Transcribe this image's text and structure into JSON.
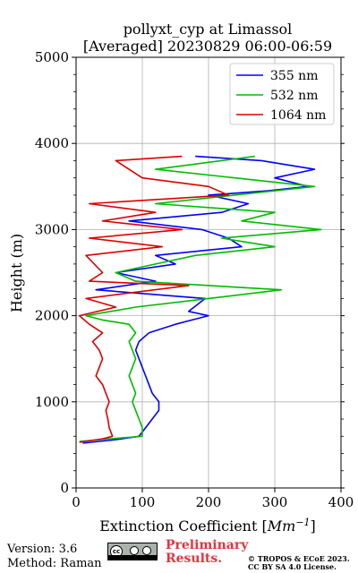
{
  "chart_data": {
    "type": "line",
    "title": "pollyxt_cyp at Limassol",
    "subtitle": "[Averaged] 20230829 06:00-06:59",
    "xlabel": "Extinction Coefficient [Mm⁻¹]",
    "xlabel_base": "Extinction Coefficient [",
    "xlabel_unit": "Mm",
    "xlabel_exp": "−1",
    "xlabel_close": "]",
    "ylabel": "Height (m)",
    "xlim": [
      0,
      400
    ],
    "ylim": [
      0,
      5000
    ],
    "xticks": [
      "0",
      "100",
      "200",
      "300",
      "400"
    ],
    "yticks": [
      "0",
      "1000",
      "2000",
      "3000",
      "4000",
      "5000"
    ],
    "grid": true,
    "legend_position": "top-right",
    "series": [
      {
        "name": "355 nm",
        "color": "#0000ff",
        "points": [
          [
            10,
            520
          ],
          [
            60,
            560
          ],
          [
            95,
            600
          ],
          [
            105,
            700
          ],
          [
            115,
            800
          ],
          [
            125,
            900
          ],
          [
            125,
            1000
          ],
          [
            115,
            1100
          ],
          [
            110,
            1200
          ],
          [
            105,
            1300
          ],
          [
            100,
            1400
          ],
          [
            95,
            1500
          ],
          [
            90,
            1600
          ],
          [
            95,
            1700
          ],
          [
            110,
            1800
          ],
          [
            150,
            1900
          ],
          [
            175,
            1950
          ],
          [
            200,
            2000
          ],
          [
            170,
            2050
          ],
          [
            195,
            2200
          ],
          [
            30,
            2300
          ],
          [
            120,
            2400
          ],
          [
            60,
            2500
          ],
          [
            150,
            2600
          ],
          [
            120,
            2700
          ],
          [
            250,
            2800
          ],
          [
            230,
            2900
          ],
          [
            190,
            3000
          ],
          [
            80,
            3100
          ],
          [
            220,
            3200
          ],
          [
            260,
            3300
          ],
          [
            200,
            3400
          ],
          [
            290,
            3450
          ],
          [
            350,
            3500
          ],
          [
            300,
            3600
          ],
          [
            360,
            3700
          ],
          [
            280,
            3800
          ],
          [
            180,
            3850
          ]
        ]
      },
      {
        "name": "532 nm",
        "color": "#00bb00",
        "points": [
          [
            5,
            540
          ],
          [
            50,
            570
          ],
          [
            100,
            600
          ],
          [
            100,
            700
          ],
          [
            95,
            800
          ],
          [
            90,
            900
          ],
          [
            85,
            1000
          ],
          [
            90,
            1100
          ],
          [
            85,
            1200
          ],
          [
            80,
            1300
          ],
          [
            85,
            1400
          ],
          [
            90,
            1500
          ],
          [
            85,
            1600
          ],
          [
            80,
            1700
          ],
          [
            90,
            1800
          ],
          [
            80,
            1900
          ],
          [
            40,
            1950
          ],
          [
            15,
            2000
          ],
          [
            90,
            2100
          ],
          [
            200,
            2200
          ],
          [
            310,
            2300
          ],
          [
            90,
            2400
          ],
          [
            60,
            2500
          ],
          [
            120,
            2600
          ],
          [
            180,
            2700
          ],
          [
            300,
            2800
          ],
          [
            220,
            2900
          ],
          [
            370,
            3000
          ],
          [
            250,
            3100
          ],
          [
            300,
            3200
          ],
          [
            120,
            3300
          ],
          [
            360,
            3500
          ],
          [
            240,
            3600
          ],
          [
            120,
            3700
          ],
          [
            270,
            3850
          ]
        ]
      },
      {
        "name": "1064 nm",
        "color": "#dd0000",
        "points": [
          [
            5,
            530
          ],
          [
            40,
            570
          ],
          [
            55,
            600
          ],
          [
            50,
            700
          ],
          [
            48,
            800
          ],
          [
            45,
            900
          ],
          [
            50,
            1000
          ],
          [
            45,
            1100
          ],
          [
            40,
            1200
          ],
          [
            30,
            1300
          ],
          [
            35,
            1400
          ],
          [
            40,
            1500
          ],
          [
            35,
            1600
          ],
          [
            25,
            1700
          ],
          [
            40,
            1800
          ],
          [
            20,
            1900
          ],
          [
            5,
            2000
          ],
          [
            60,
            2100
          ],
          [
            15,
            2200
          ],
          [
            170,
            2350
          ],
          [
            20,
            2400
          ],
          [
            40,
            2500
          ],
          [
            15,
            2700
          ],
          [
            130,
            2800
          ],
          [
            20,
            2900
          ],
          [
            160,
            3000
          ],
          [
            40,
            3100
          ],
          [
            120,
            3200
          ],
          [
            20,
            3300
          ],
          [
            230,
            3400
          ],
          [
            200,
            3500
          ],
          [
            100,
            3600
          ],
          [
            80,
            3700
          ],
          [
            60,
            3800
          ],
          [
            160,
            3850
          ]
        ]
      }
    ]
  },
  "footer": {
    "version": "Version: 3.6",
    "method": "Method: Raman",
    "cc_mark": "cc",
    "preliminary_line1": "Preliminary",
    "preliminary_line2": "Results.",
    "copyright_line1": "© TROPOS & ECoE 2023.",
    "copyright_line2": "CC BY SA 4.0 License."
  }
}
